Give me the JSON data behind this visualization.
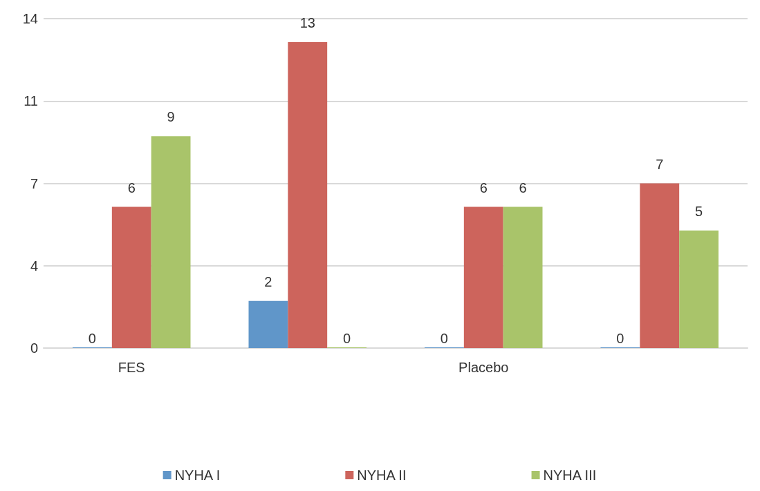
{
  "chart_data": {
    "type": "bar",
    "categories": [
      "FES",
      null,
      "Placebo",
      null
    ],
    "series": [
      {
        "name": "NYHA I",
        "color": "#6096c9",
        "values": [
          0,
          2,
          0,
          0
        ]
      },
      {
        "name": "NYHA II",
        "color": "#cd645c",
        "values": [
          6,
          13,
          6,
          7
        ]
      },
      {
        "name": "NYHA III",
        "color": "#a9c46a",
        "values": [
          9,
          0,
          6,
          5
        ]
      }
    ],
    "ylim": [
      0,
      14
    ],
    "yticks": [
      0,
      {
        "value": 3.5,
        "label": "4"
      },
      7,
      {
        "value": 10.5,
        "label": "11"
      },
      14
    ],
    "grid": "y",
    "legend": "bottom",
    "data_labels": true
  }
}
